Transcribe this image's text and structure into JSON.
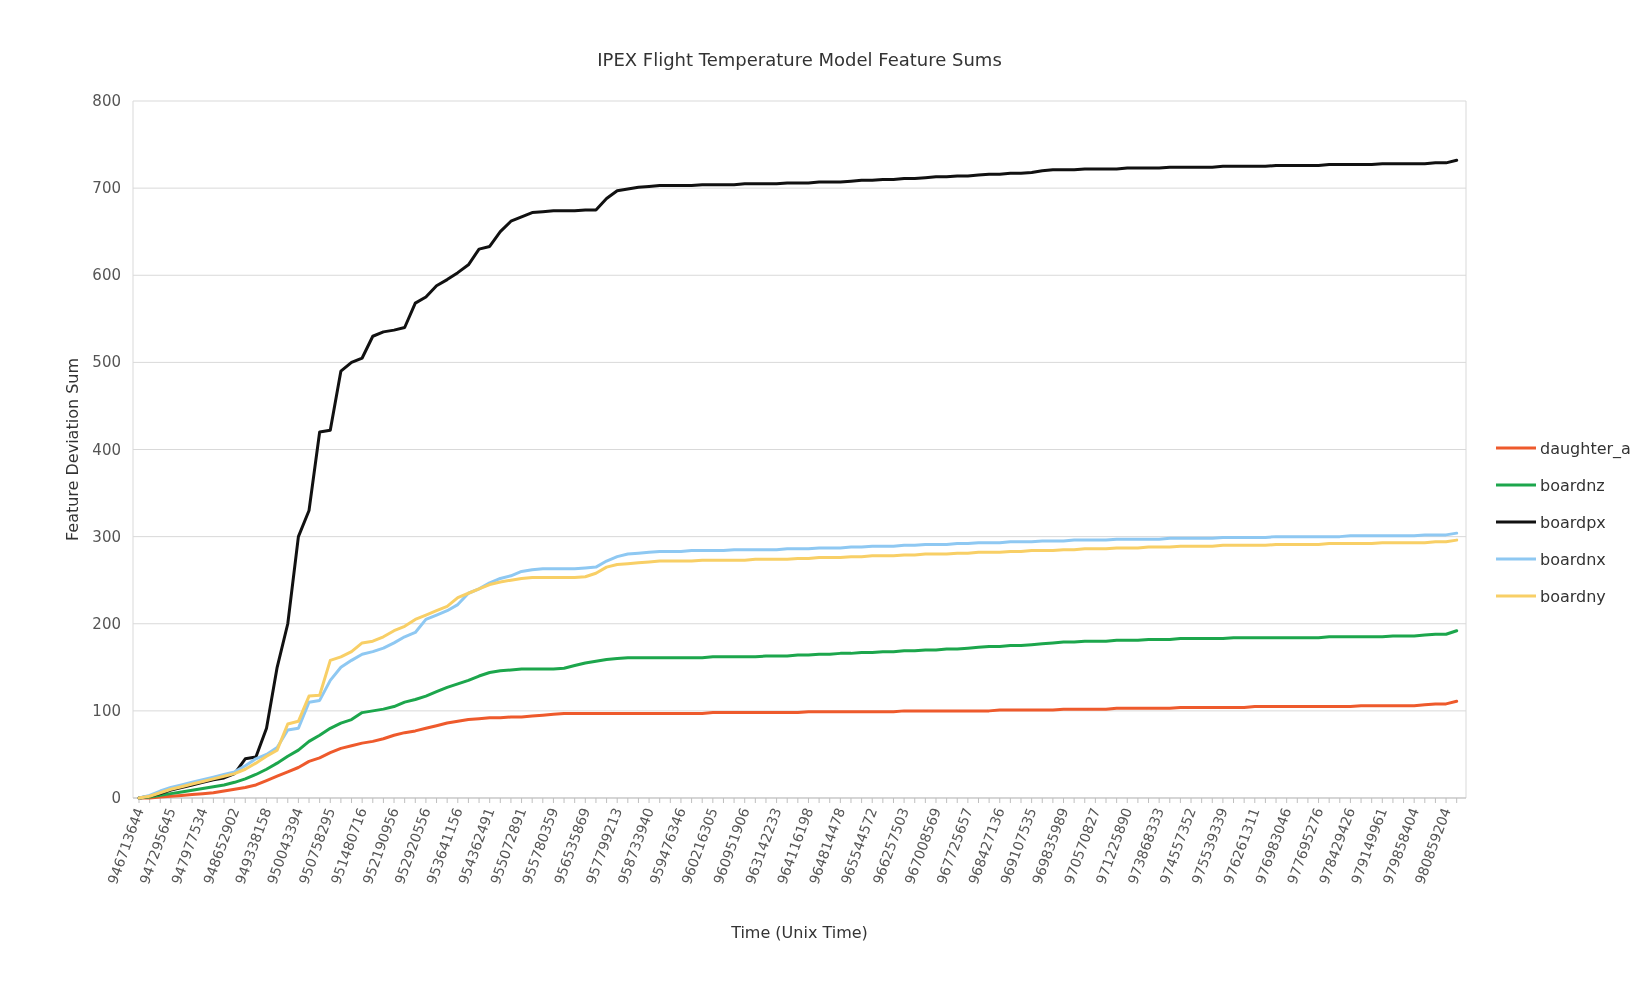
{
  "chart_data": {
    "type": "line",
    "title": "IPEX Flight Temperature Model Feature Sums",
    "xlabel": "Time (Unix Time)",
    "ylabel": "Feature Deviation Sum",
    "categories": [
      "946713644",
      null,
      null,
      "947295645",
      null,
      null,
      "947977534",
      null,
      null,
      "948652902",
      null,
      null,
      "949338158",
      null,
      null,
      "950043394",
      null,
      null,
      "950758295",
      null,
      null,
      "951480716",
      null,
      null,
      "952190956",
      null,
      null,
      "952920556",
      null,
      null,
      "953641156",
      null,
      null,
      "954362491",
      null,
      null,
      "955072891",
      null,
      null,
      "955780359",
      null,
      null,
      "956535869",
      null,
      null,
      "957799213",
      null,
      null,
      "958733940",
      null,
      null,
      "959476346",
      null,
      null,
      "960216305",
      null,
      null,
      "960951906",
      null,
      null,
      "963142233",
      null,
      null,
      "964116198",
      null,
      null,
      "964814478",
      null,
      null,
      "965544572",
      null,
      null,
      "966257503",
      null,
      null,
      "967008569",
      null,
      null,
      "967725657",
      null,
      null,
      "968427136",
      null,
      null,
      "969107535",
      null,
      null,
      "969835989",
      null,
      null,
      "970570827",
      null,
      null,
      "971225890",
      null,
      null,
      "973868333",
      null,
      null,
      "974557352",
      null,
      null,
      "975539339",
      null,
      null,
      "976261311",
      null,
      null,
      "976983046",
      null,
      null,
      "977695276",
      null,
      null,
      "978429426",
      null,
      null,
      "979149961",
      null,
      null,
      "979858404",
      null,
      null,
      "980859204",
      null
    ],
    "series": [
      {
        "name": "daughter_a",
        "color": "#ee5a2c",
        "values": [
          0,
          0,
          1,
          2,
          3,
          4,
          5,
          6,
          8,
          10,
          12,
          15,
          20,
          25,
          30,
          35,
          42,
          46,
          52,
          57,
          60,
          63,
          65,
          68,
          72,
          75,
          77,
          80,
          83,
          86,
          88,
          90,
          91,
          92,
          92,
          93,
          93,
          94,
          95,
          96,
          97,
          97,
          97,
          97,
          97,
          97,
          97,
          97,
          97,
          97,
          97,
          97,
          97,
          97,
          98,
          98,
          98,
          98,
          98,
          98,
          98,
          98,
          98,
          99,
          99,
          99,
          99,
          99,
          99,
          99,
          99,
          99,
          100,
          100,
          100,
          100,
          100,
          100,
          100,
          100,
          100,
          101,
          101,
          101,
          101,
          101,
          101,
          102,
          102,
          102,
          102,
          102,
          103,
          103,
          103,
          103,
          103,
          103,
          104,
          104,
          104,
          104,
          104,
          104,
          104,
          105,
          105,
          105,
          105,
          105,
          105,
          105,
          105,
          105,
          105,
          106,
          106,
          106,
          106,
          106,
          106,
          107,
          108,
          108,
          111
        ]
      },
      {
        "name": "boardnz",
        "color": "#1ca64c",
        "values": [
          0,
          1,
          3,
          5,
          7,
          9,
          11,
          13,
          15,
          18,
          22,
          27,
          33,
          40,
          48,
          55,
          65,
          72,
          80,
          86,
          90,
          98,
          100,
          102,
          105,
          110,
          113,
          117,
          122,
          127,
          131,
          135,
          140,
          144,
          146,
          147,
          148,
          148,
          148,
          148,
          149,
          152,
          155,
          157,
          159,
          160,
          161,
          161,
          161,
          161,
          161,
          161,
          161,
          161,
          162,
          162,
          162,
          162,
          162,
          163,
          163,
          163,
          164,
          164,
          165,
          165,
          166,
          166,
          167,
          167,
          168,
          168,
          169,
          169,
          170,
          170,
          171,
          171,
          172,
          173,
          174,
          174,
          175,
          175,
          176,
          177,
          178,
          179,
          179,
          180,
          180,
          180,
          181,
          181,
          181,
          182,
          182,
          182,
          183,
          183,
          183,
          183,
          183,
          184,
          184,
          184,
          184,
          184,
          184,
          184,
          184,
          184,
          185,
          185,
          185,
          185,
          185,
          185,
          186,
          186,
          186,
          187,
          188,
          188,
          192
        ]
      },
      {
        "name": "boardpx",
        "color": "#111111",
        "values": [
          0,
          2,
          5,
          9,
          12,
          15,
          18,
          21,
          23,
          28,
          45,
          47,
          80,
          150,
          200,
          300,
          330,
          420,
          422,
          490,
          500,
          505,
          530,
          535,
          537,
          540,
          568,
          575,
          588,
          595,
          603,
          612,
          630,
          633,
          650,
          662,
          667,
          672,
          673,
          674,
          674,
          674,
          675,
          675,
          688,
          697,
          699,
          701,
          702,
          703,
          703,
          703,
          703,
          704,
          704,
          704,
          704,
          705,
          705,
          705,
          705,
          706,
          706,
          706,
          707,
          707,
          707,
          708,
          709,
          709,
          710,
          710,
          711,
          711,
          712,
          713,
          713,
          714,
          714,
          715,
          716,
          716,
          717,
          717,
          718,
          720,
          721,
          721,
          721,
          722,
          722,
          722,
          722,
          723,
          723,
          723,
          723,
          724,
          724,
          724,
          724,
          724,
          725,
          725,
          725,
          725,
          725,
          726,
          726,
          726,
          726,
          726,
          727,
          727,
          727,
          727,
          727,
          728,
          728,
          728,
          728,
          728,
          729,
          729,
          732
        ]
      },
      {
        "name": "boardnx",
        "color": "#8ec8f2",
        "values": [
          0,
          3,
          8,
          12,
          15,
          18,
          21,
          24,
          27,
          30,
          37,
          45,
          50,
          58,
          78,
          80,
          110,
          112,
          135,
          150,
          158,
          165,
          168,
          172,
          178,
          185,
          190,
          205,
          210,
          215,
          222,
          235,
          240,
          247,
          252,
          255,
          260,
          262,
          263,
          263,
          263,
          263,
          264,
          265,
          272,
          277,
          280,
          281,
          282,
          283,
          283,
          283,
          284,
          284,
          284,
          284,
          285,
          285,
          285,
          285,
          285,
          286,
          286,
          286,
          287,
          287,
          287,
          288,
          288,
          289,
          289,
          289,
          290,
          290,
          291,
          291,
          291,
          292,
          292,
          293,
          293,
          293,
          294,
          294,
          294,
          295,
          295,
          295,
          296,
          296,
          296,
          296,
          297,
          297,
          297,
          297,
          297,
          298,
          298,
          298,
          298,
          298,
          299,
          299,
          299,
          299,
          299,
          300,
          300,
          300,
          300,
          300,
          300,
          300,
          301,
          301,
          301,
          301,
          301,
          301,
          301,
          302,
          302,
          302,
          304
        ]
      },
      {
        "name": "boardny",
        "color": "#f8cf66",
        "values": [
          0,
          2,
          6,
          10,
          13,
          16,
          19,
          22,
          25,
          28,
          33,
          40,
          48,
          55,
          85,
          88,
          117,
          118,
          158,
          162,
          168,
          178,
          180,
          185,
          192,
          197,
          205,
          210,
          215,
          220,
          230,
          235,
          240,
          245,
          248,
          250,
          252,
          253,
          253,
          253,
          253,
          253,
          254,
          258,
          265,
          268,
          269,
          270,
          271,
          272,
          272,
          272,
          272,
          273,
          273,
          273,
          273,
          273,
          274,
          274,
          274,
          274,
          275,
          275,
          276,
          276,
          276,
          277,
          277,
          278,
          278,
          278,
          279,
          279,
          280,
          280,
          280,
          281,
          281,
          282,
          282,
          282,
          283,
          283,
          284,
          284,
          284,
          285,
          285,
          286,
          286,
          286,
          287,
          287,
          287,
          288,
          288,
          288,
          289,
          289,
          289,
          289,
          290,
          290,
          290,
          290,
          290,
          291,
          291,
          291,
          291,
          291,
          292,
          292,
          292,
          292,
          292,
          293,
          293,
          293,
          293,
          293,
          294,
          294,
          296
        ]
      }
    ],
    "ylim": [
      0,
      800
    ],
    "yticks": [
      0,
      100,
      200,
      300,
      400,
      500,
      600,
      700,
      800
    ],
    "grid": "y",
    "legend": "right",
    "line_style": "solid",
    "marker": "none"
  }
}
